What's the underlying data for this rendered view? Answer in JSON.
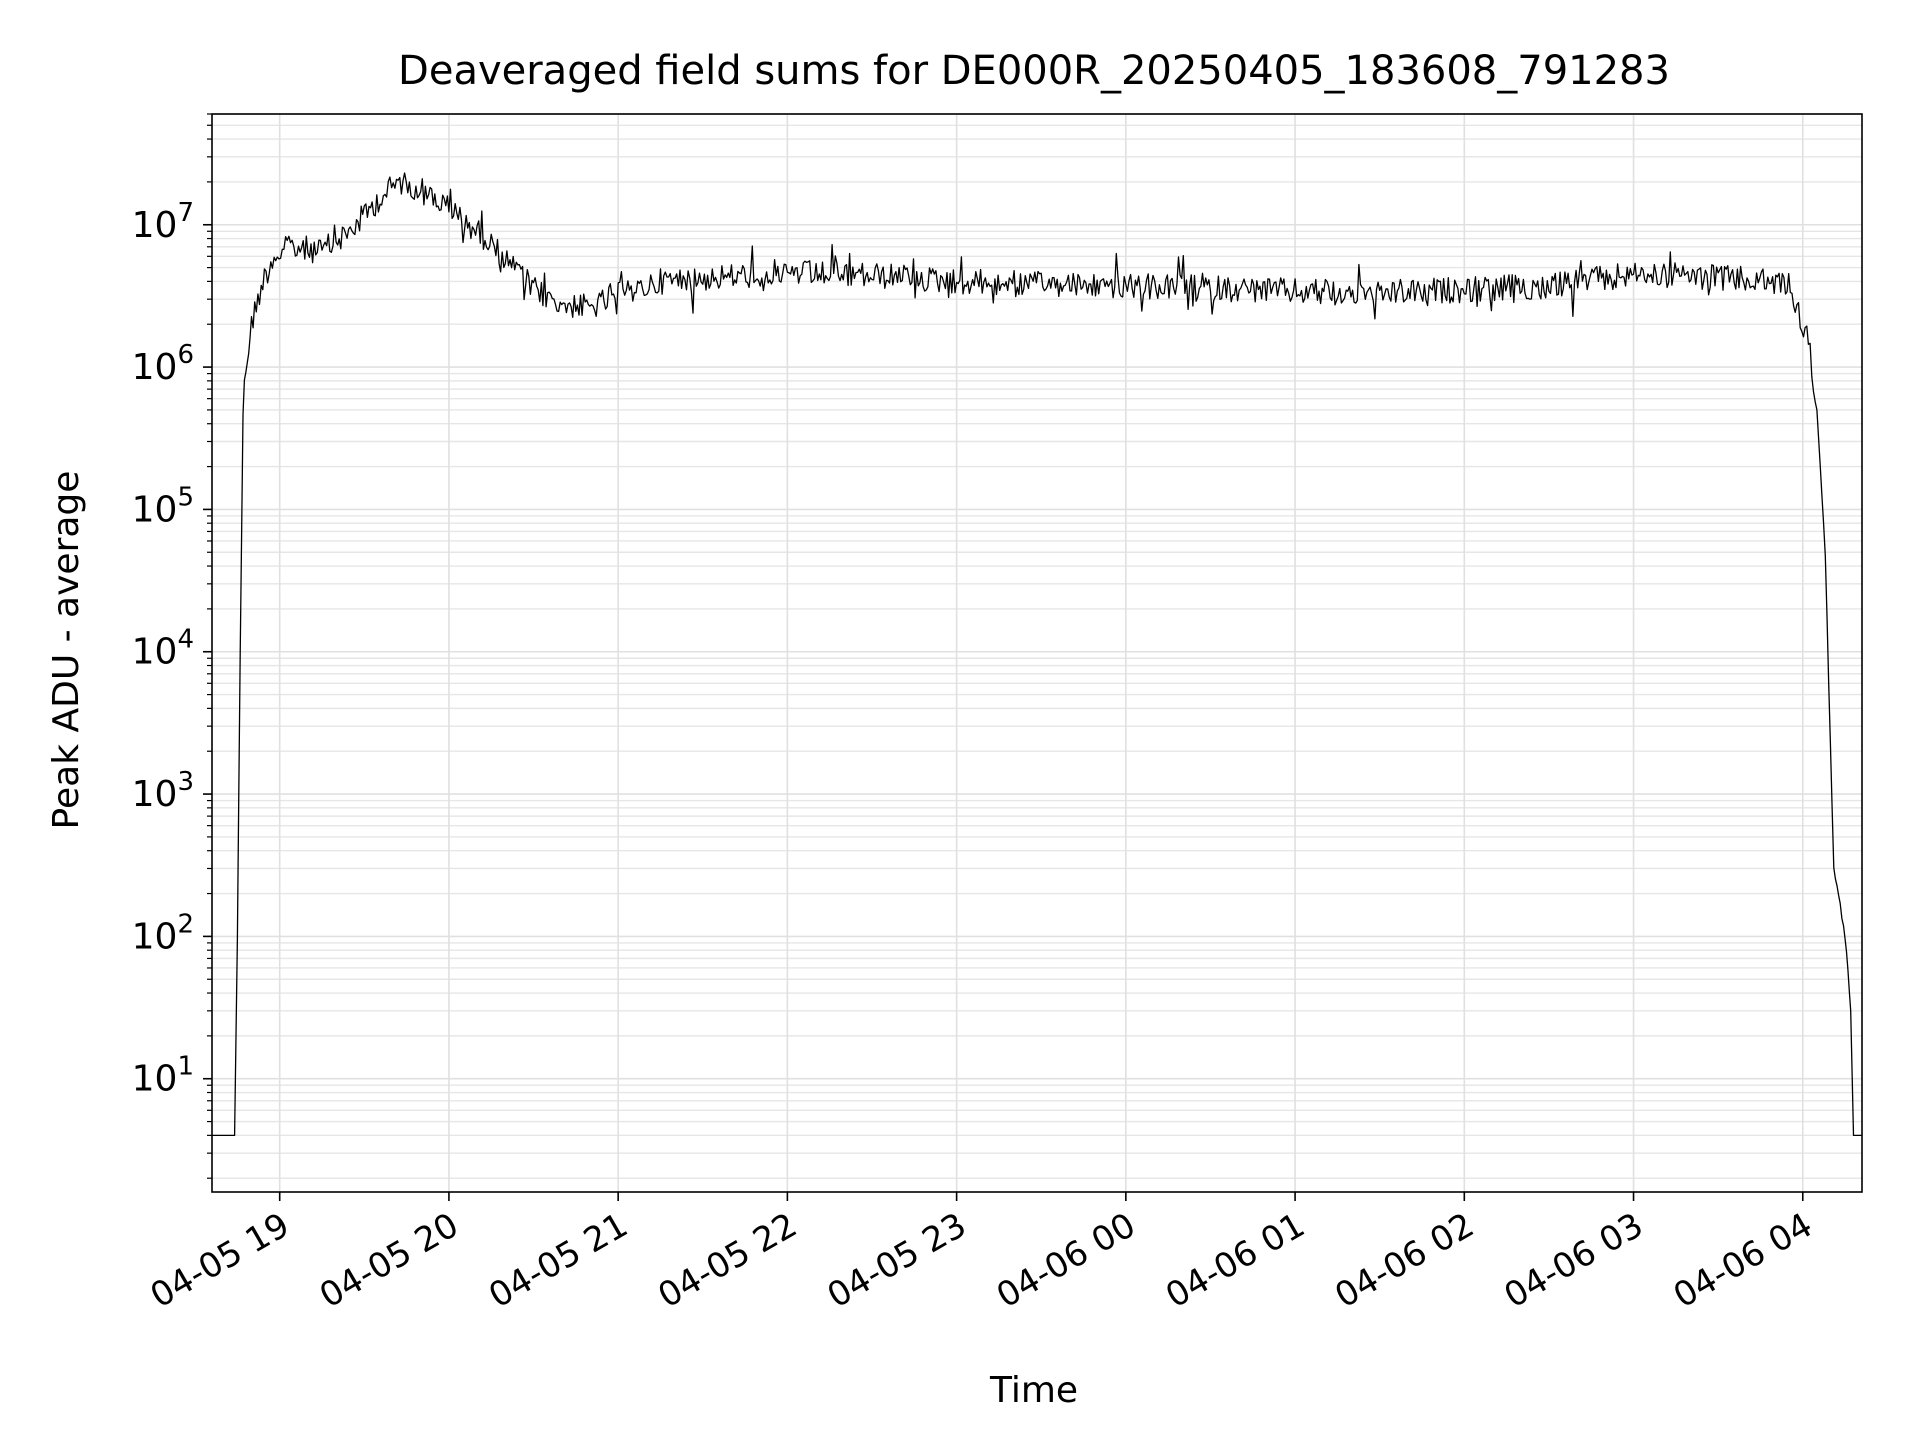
{
  "chart_data": {
    "type": "line",
    "title": "Deaveraged field sums for DE000R_20250405_183608_791283",
    "xlabel": "Time",
    "ylabel": "Peak ADU - average",
    "yscale": "log",
    "xlim": [
      "2025-04-05 18:36",
      "2025-04-06 04:21"
    ],
    "ylim": [
      1.6,
      60000000
    ],
    "grid": {
      "major": true,
      "minor_y": true
    },
    "line_color": "#000000",
    "x_ticks": [
      {
        "t": "2025-04-05 19:00",
        "label": "04-05 19"
      },
      {
        "t": "2025-04-05 20:00",
        "label": "04-05 20"
      },
      {
        "t": "2025-04-05 21:00",
        "label": "04-05 21"
      },
      {
        "t": "2025-04-05 22:00",
        "label": "04-05 22"
      },
      {
        "t": "2025-04-05 23:00",
        "label": "04-05 23"
      },
      {
        "t": "2025-04-06 00:00",
        "label": "04-06 00"
      },
      {
        "t": "2025-04-06 01:00",
        "label": "04-06 01"
      },
      {
        "t": "2025-04-06 02:00",
        "label": "04-06 02"
      },
      {
        "t": "2025-04-06 03:00",
        "label": "04-06 03"
      },
      {
        "t": "2025-04-06 04:00",
        "label": "04-06 04"
      }
    ],
    "y_ticks": [
      {
        "value": 10,
        "base": "10",
        "exp": "1"
      },
      {
        "value": 100,
        "base": "10",
        "exp": "2"
      },
      {
        "value": 1000,
        "base": "10",
        "exp": "3"
      },
      {
        "value": 10000,
        "base": "10",
        "exp": "4"
      },
      {
        "value": 100000,
        "base": "10",
        "exp": "5"
      },
      {
        "value": 1000000,
        "base": "10",
        "exp": "6"
      },
      {
        "value": 10000000,
        "base": "10",
        "exp": "7"
      }
    ],
    "series": [
      {
        "points": [
          [
            "2025-04-05 18:36",
            4
          ],
          [
            "2025-04-05 18:44",
            4
          ],
          [
            "2025-04-05 18:45",
            100
          ],
          [
            "2025-04-05 18:46",
            10000
          ],
          [
            "2025-04-05 18:47",
            500000
          ],
          [
            "2025-04-05 18:48",
            1000000
          ],
          [
            "2025-04-05 18:50",
            2000000
          ],
          [
            "2025-04-05 18:54",
            4000000
          ],
          [
            "2025-04-05 18:58",
            6000000
          ],
          [
            "2025-04-05 19:05",
            7000000
          ],
          [
            "2025-04-05 19:15",
            6500000
          ],
          [
            "2025-04-05 19:25",
            9000000
          ],
          [
            "2025-04-05 19:35",
            15000000
          ],
          [
            "2025-04-05 19:42",
            20000000
          ],
          [
            "2025-04-05 19:50",
            18000000
          ],
          [
            "2025-04-05 20:00",
            13000000
          ],
          [
            "2025-04-05 20:10",
            9000000
          ],
          [
            "2025-04-05 20:20",
            6000000
          ],
          [
            "2025-04-05 20:30",
            3500000
          ],
          [
            "2025-04-05 20:40",
            2800000
          ],
          [
            "2025-04-05 20:50",
            2600000
          ],
          [
            "2025-04-05 21:00",
            3200000
          ],
          [
            "2025-04-05 21:15",
            4000000
          ],
          [
            "2025-04-05 21:30",
            4200000
          ],
          [
            "2025-04-05 22:00",
            4600000
          ],
          [
            "2025-04-05 22:30",
            4400000
          ],
          [
            "2025-04-05 23:00",
            4000000
          ],
          [
            "2025-04-05 23:30",
            3800000
          ],
          [
            "2025-04-06 00:00",
            3700000
          ],
          [
            "2025-04-06 00:30",
            3600000
          ],
          [
            "2025-04-06 01:00",
            3400000
          ],
          [
            "2025-04-06 01:30",
            3300000
          ],
          [
            "2025-04-06 02:00",
            3500000
          ],
          [
            "2025-04-06 02:30",
            3700000
          ],
          [
            "2025-04-06 03:00",
            4500000
          ],
          [
            "2025-04-06 03:30",
            4300000
          ],
          [
            "2025-04-06 03:55",
            3800000
          ],
          [
            "2025-04-06 04:02",
            1500000
          ],
          [
            "2025-04-06 04:05",
            500000
          ],
          [
            "2025-04-06 04:08",
            50000
          ],
          [
            "2025-04-06 04:11",
            300
          ],
          [
            "2025-04-06 04:15",
            100
          ],
          [
            "2025-04-06 04:17",
            30
          ],
          [
            "2025-04-06 04:18",
            4
          ],
          [
            "2025-04-06 04:21",
            4
          ]
        ]
      }
    ]
  }
}
